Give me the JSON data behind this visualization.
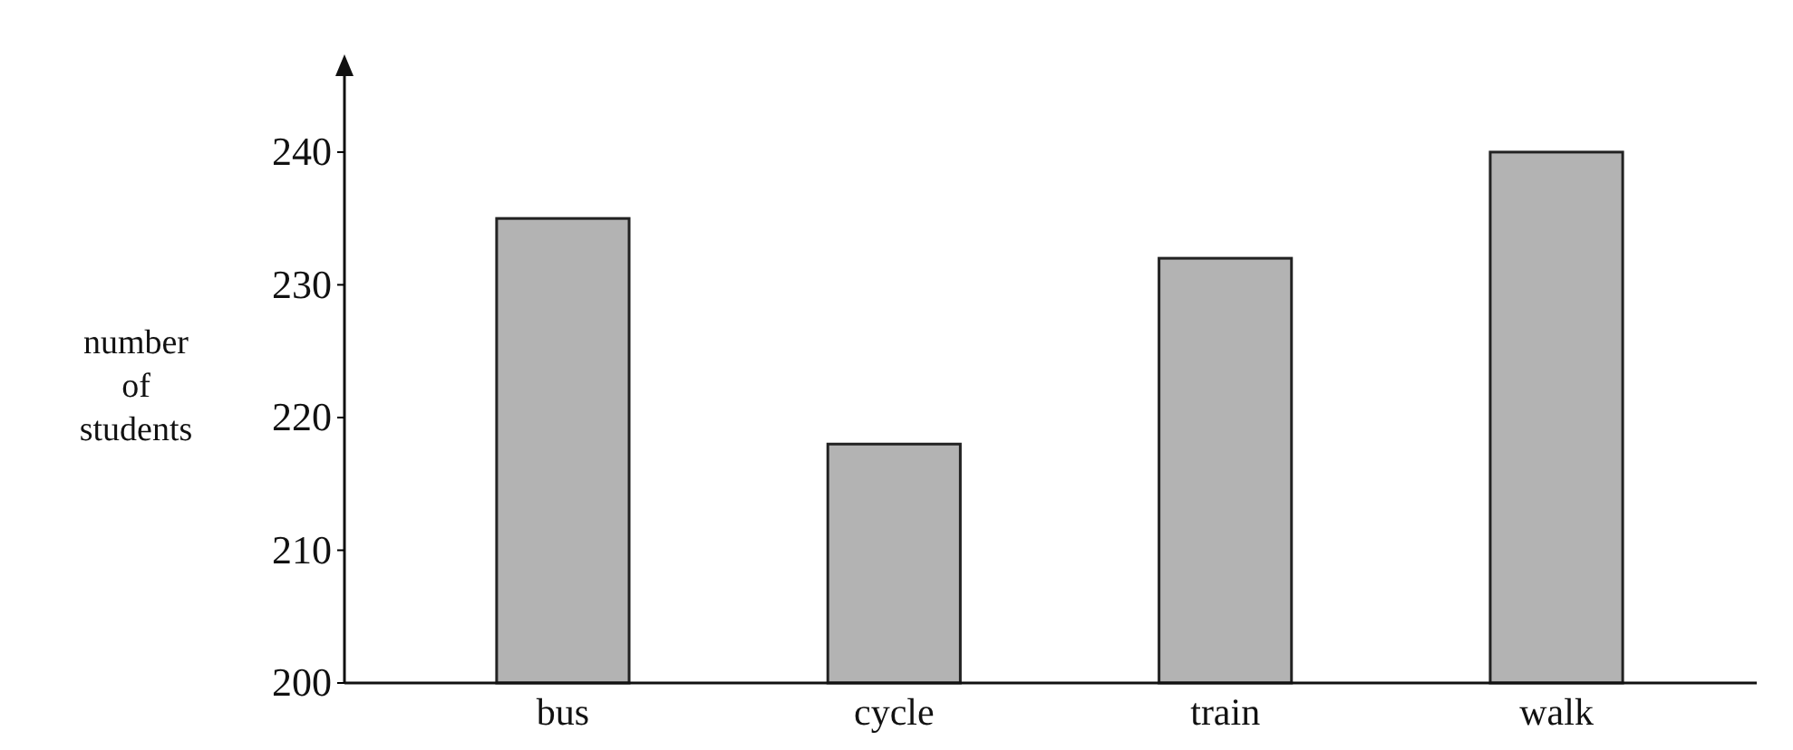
{
  "chart_data": {
    "type": "bar",
    "ylabel": "number of students",
    "categories": [
      "bus",
      "cycle",
      "train",
      "walk"
    ],
    "values": [
      235,
      218,
      232,
      240
    ],
    "color": "#b3b3b3",
    "ylim": [
      200,
      246
    ],
    "yticks": [
      200,
      210,
      220,
      230,
      240
    ],
    "grid": false
  }
}
